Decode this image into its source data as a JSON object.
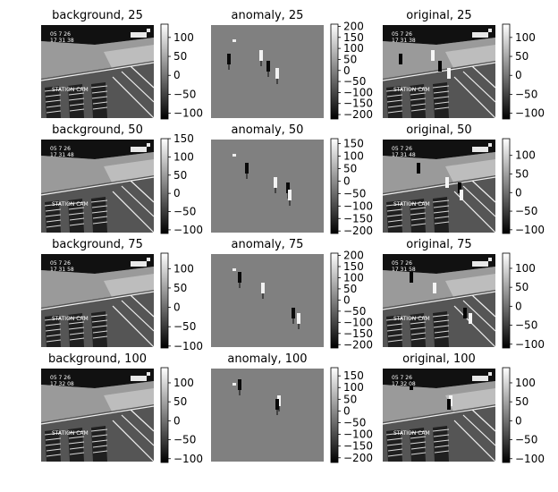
{
  "chart_data": [
    {
      "type": "heatmap",
      "title": "background, 25",
      "colormap": "gray",
      "colorbar": {
        "ticks": [
          100,
          50,
          0,
          -50,
          -100
        ],
        "range": [
          -115,
          135
        ]
      }
    },
    {
      "type": "heatmap",
      "title": "anomaly, 25",
      "colormap": "gray",
      "colorbar": {
        "ticks": [
          200,
          150,
          100,
          50,
          0,
          -50,
          -100,
          -150,
          -200
        ],
        "range": [
          -220,
          210
        ]
      }
    },
    {
      "type": "heatmap",
      "title": "original, 25",
      "colormap": "gray",
      "colorbar": {
        "ticks": [
          100,
          50,
          0,
          -50,
          -100
        ],
        "range": [
          -115,
          135
        ]
      }
    },
    {
      "type": "heatmap",
      "title": "background, 50",
      "colormap": "gray",
      "colorbar": {
        "ticks": [
          150,
          100,
          50,
          0,
          -50,
          -100
        ],
        "range": [
          -110,
          150
        ]
      }
    },
    {
      "type": "heatmap",
      "title": "anomaly, 50",
      "colormap": "gray",
      "colorbar": {
        "ticks": [
          150,
          100,
          50,
          0,
          -50,
          -100,
          -150,
          -200
        ],
        "range": [
          -210,
          170
        ]
      }
    },
    {
      "type": "heatmap",
      "title": "original, 50",
      "colormap": "gray",
      "colorbar": {
        "ticks": [
          100,
          50,
          0,
          -50,
          -100
        ],
        "range": [
          -110,
          145
        ]
      }
    },
    {
      "type": "heatmap",
      "title": "background, 75",
      "colormap": "gray",
      "colorbar": {
        "ticks": [
          100,
          50,
          0,
          -50,
          -100
        ],
        "range": [
          -105,
          140
        ]
      }
    },
    {
      "type": "heatmap",
      "title": "anomaly, 75",
      "colormap": "gray",
      "colorbar": {
        "ticks": [
          200,
          150,
          100,
          50,
          0,
          -50,
          -100,
          -150,
          -200
        ],
        "range": [
          -215,
          210
        ]
      }
    },
    {
      "type": "heatmap",
      "title": "original, 75",
      "colormap": "gray",
      "colorbar": {
        "ticks": [
          100,
          50,
          0,
          -50,
          -100
        ],
        "range": [
          -110,
          140
        ]
      }
    },
    {
      "type": "heatmap",
      "title": "background, 100",
      "colormap": "gray",
      "colorbar": {
        "ticks": [
          100,
          50,
          0,
          -50,
          -100
        ],
        "range": [
          -110,
          140
        ]
      }
    },
    {
      "type": "heatmap",
      "title": "anomaly, 100",
      "colormap": "gray",
      "colorbar": {
        "ticks": [
          150,
          100,
          50,
          0,
          -50,
          -100,
          -150,
          -200
        ],
        "range": [
          -220,
          185
        ]
      }
    },
    {
      "type": "heatmap",
      "title": "original, 100",
      "colormap": "gray",
      "colorbar": {
        "ticks": [
          100,
          50,
          0,
          -50,
          -100
        ],
        "range": [
          -110,
          140
        ]
      }
    }
  ],
  "overlay_text": {
    "date": "05 7 26",
    "time_25": "17 31 38",
    "time_50": "17 31 48",
    "time_75": "17 31 58",
    "time_100": "17 32 08",
    "caption": "STATION CAM"
  },
  "colors": {
    "dark": "#0a0a0a",
    "light": "#f2f2f2",
    "anomaly_bg": "#808080"
  }
}
